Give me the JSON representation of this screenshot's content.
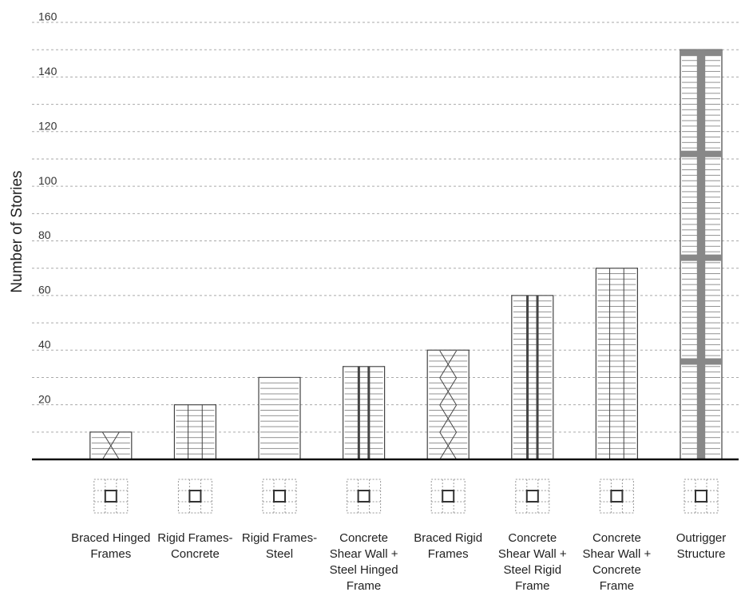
{
  "chart_data": {
    "type": "bar",
    "y_label": "Number of Stories",
    "categories": [
      "Braced Hinged Frames",
      "Rigid Frames-Concrete",
      "Rigid Frames-Steel",
      "Concrete Shear Wall + Steel Hinged Frame",
      "Braced Rigid Frames",
      "Concrete Shear Wall + Steel Rigid Frame",
      "Concrete Shear Wall + Concrete Frame",
      "Outrigger Structure"
    ],
    "values": [
      10,
      20,
      30,
      34,
      40,
      60,
      70,
      150
    ],
    "color": "#ffffff",
    "ylim": [
      0,
      160
    ],
    "yticks": [
      20,
      40,
      60,
      80,
      100,
      120,
      140,
      160
    ],
    "minor_yticks": [
      10,
      30,
      50,
      70,
      90,
      110,
      130,
      150
    ],
    "grid": true
  }
}
